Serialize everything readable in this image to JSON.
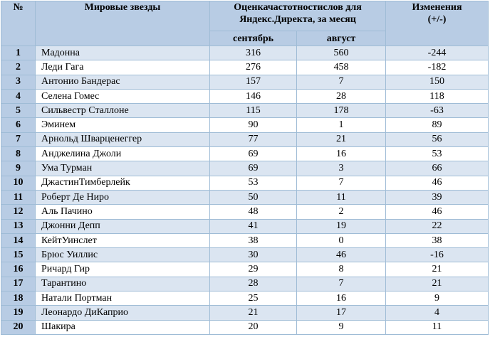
{
  "table": {
    "headers": {
      "num": "№",
      "name": "Мировые звезды",
      "search_line1": "Оценкачастотностислов для",
      "search_line2": "Яндекс.Директа, за месяц",
      "change_line1": "Изменения",
      "change_line2": "(+/-)",
      "september": "сентябрь",
      "august": "август"
    },
    "rows": [
      {
        "num": "1",
        "name": "Мадонна",
        "sep": "316",
        "aug": "560",
        "change": "-244"
      },
      {
        "num": "2",
        "name": "Леди Гага",
        "sep": "276",
        "aug": "458",
        "change": "-182"
      },
      {
        "num": "3",
        "name": "Антонио Бандерас",
        "sep": "157",
        "aug": "7",
        "change": "150"
      },
      {
        "num": "4",
        "name": "Селена Гомес",
        "sep": "146",
        "aug": "28",
        "change": "118"
      },
      {
        "num": "5",
        "name": "Сильвестр Сталлоне",
        "sep": "115",
        "aug": "178",
        "change": "-63"
      },
      {
        "num": "6",
        "name": "Эминем",
        "sep": "90",
        "aug": "1",
        "change": "89"
      },
      {
        "num": "7",
        "name": "Арнольд Шварценеггер",
        "sep": "77",
        "aug": "21",
        "change": "56"
      },
      {
        "num": "8",
        "name": "Анджелина Джоли",
        "sep": "69",
        "aug": "16",
        "change": "53"
      },
      {
        "num": "9",
        "name": "Ума Турман",
        "sep": "69",
        "aug": "3",
        "change": "66"
      },
      {
        "num": "10",
        "name": "ДжастинТимберлейк",
        "sep": "53",
        "aug": "7",
        "change": "46"
      },
      {
        "num": "11",
        "name": "Роберт Де Ниро",
        "sep": "50",
        "aug": "11",
        "change": "39"
      },
      {
        "num": "12",
        "name": "Аль Пачино",
        "sep": "48",
        "aug": "2",
        "change": "46"
      },
      {
        "num": "13",
        "name": "Джонни Депп",
        "sep": "41",
        "aug": "19",
        "change": "22"
      },
      {
        "num": "14",
        "name": "КейтУинслет",
        "sep": "38",
        "aug": "0",
        "change": "38"
      },
      {
        "num": "15",
        "name": "Брюс Уиллис",
        "sep": "30",
        "aug": "46",
        "change": "-16"
      },
      {
        "num": "16",
        "name": "Ричард Гир",
        "sep": "29",
        "aug": "8",
        "change": "21"
      },
      {
        "num": "17",
        "name": "Тарантино",
        "sep": "28",
        "aug": "7",
        "change": "21"
      },
      {
        "num": "18",
        "name": "Натали Портман",
        "sep": "25",
        "aug": "16",
        "change": "9"
      },
      {
        "num": "19",
        "name": "Леонардо ДиКаприо",
        "sep": "21",
        "aug": "17",
        "change": "4"
      },
      {
        "num": "20",
        "name": "Шакира",
        "sep": "20",
        "aug": "9",
        "change": "11"
      }
    ]
  }
}
